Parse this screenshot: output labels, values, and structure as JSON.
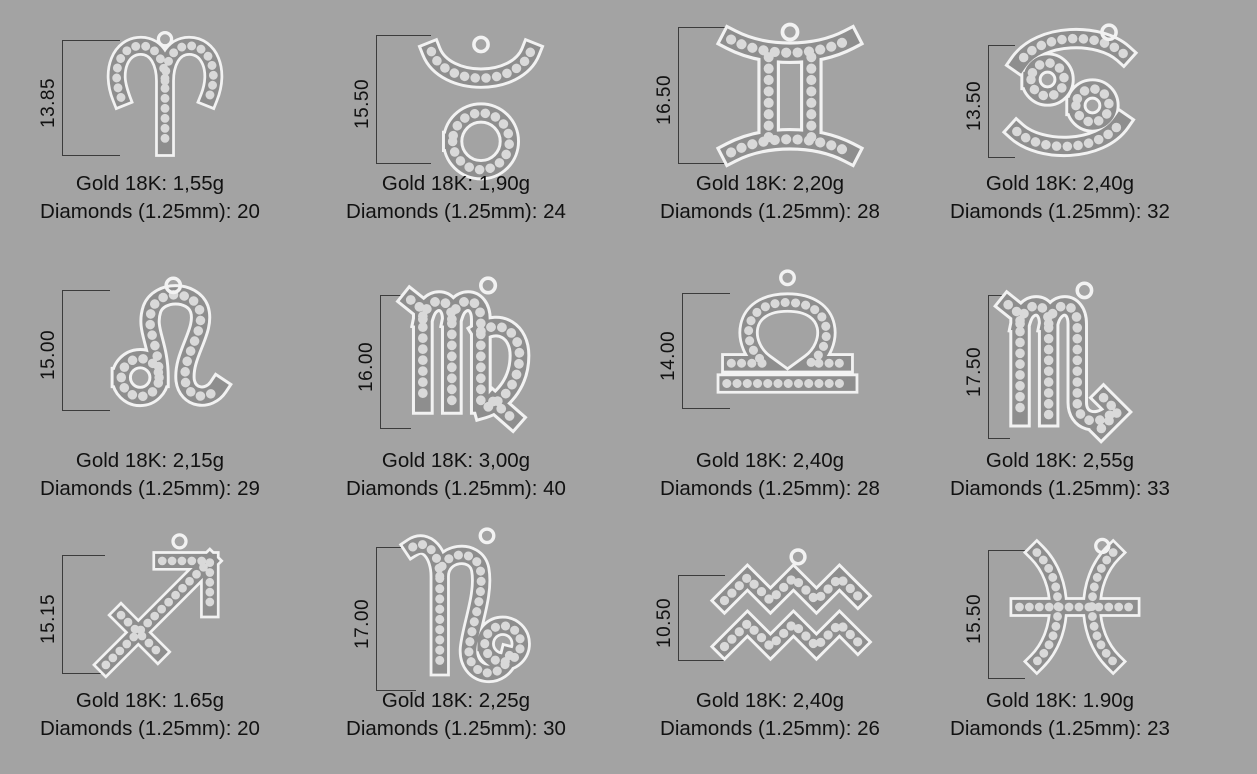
{
  "charms": [
    {
      "sign": "aries",
      "height_mm": "13.85",
      "gold": "Gold 18K: 1,55g",
      "diamonds": "Diamonds (1.25mm): 20",
      "icon": "aries-charm-icon"
    },
    {
      "sign": "taurus",
      "height_mm": "15.50",
      "gold": "Gold 18K: 1,90g",
      "diamonds": "Diamonds (1.25mm): 24",
      "icon": "taurus-charm-icon"
    },
    {
      "sign": "gemini",
      "height_mm": "16.50",
      "gold": "Gold 18K: 2,20g",
      "diamonds": "Diamonds (1.25mm): 28",
      "icon": "gemini-charm-icon"
    },
    {
      "sign": "cancer",
      "height_mm": "13.50",
      "gold": "Gold 18K: 2,40g",
      "diamonds": "Diamonds (1.25mm): 32",
      "icon": "cancer-charm-icon"
    },
    {
      "sign": "leo",
      "height_mm": "15.00",
      "gold": "Gold 18K: 2,15g",
      "diamonds": "Diamonds (1.25mm): 29",
      "icon": "leo-charm-icon"
    },
    {
      "sign": "virgo",
      "height_mm": "16.00",
      "gold": "Gold 18K: 3,00g",
      "diamonds": "Diamonds (1.25mm): 40",
      "icon": "virgo-charm-icon"
    },
    {
      "sign": "libra",
      "height_mm": "14.00",
      "gold": "Gold 18K: 2,40g",
      "diamonds": "Diamonds (1.25mm): 28",
      "icon": "libra-charm-icon"
    },
    {
      "sign": "scorpio",
      "height_mm": "17.50",
      "gold": "Gold 18K: 2,55g",
      "diamonds": "Diamonds (1.25mm): 33",
      "icon": "scorpio-charm-icon"
    },
    {
      "sign": "sagittarius",
      "height_mm": "15.15",
      "gold": "Gold 18K: 1.65g",
      "diamonds": "Diamonds (1.25mm): 20",
      "icon": "sagittarius-charm-icon"
    },
    {
      "sign": "capricorn",
      "height_mm": "17.00",
      "gold": "Gold 18K: 2,25g",
      "diamonds": "Diamonds (1.25mm): 30",
      "icon": "capricorn-charm-icon"
    },
    {
      "sign": "aquarius",
      "height_mm": "10.50",
      "gold": "Gold 18K: 2,40g",
      "diamonds": "Diamonds (1.25mm): 26",
      "icon": "aquarius-charm-icon"
    },
    {
      "sign": "pisces",
      "height_mm": "15.50",
      "gold": "Gold 18K: 1.90g",
      "diamonds": "Diamonds (1.25mm): 23",
      "icon": "pisces-charm-icon"
    }
  ],
  "colors": {
    "background": "#a3a3a3",
    "metal_outline": "#f2f2f2",
    "metal_inner": "#8e8e8e",
    "stone": "#d9d9d9",
    "dimension_line": "#3c3c3c",
    "text": "#111111"
  }
}
